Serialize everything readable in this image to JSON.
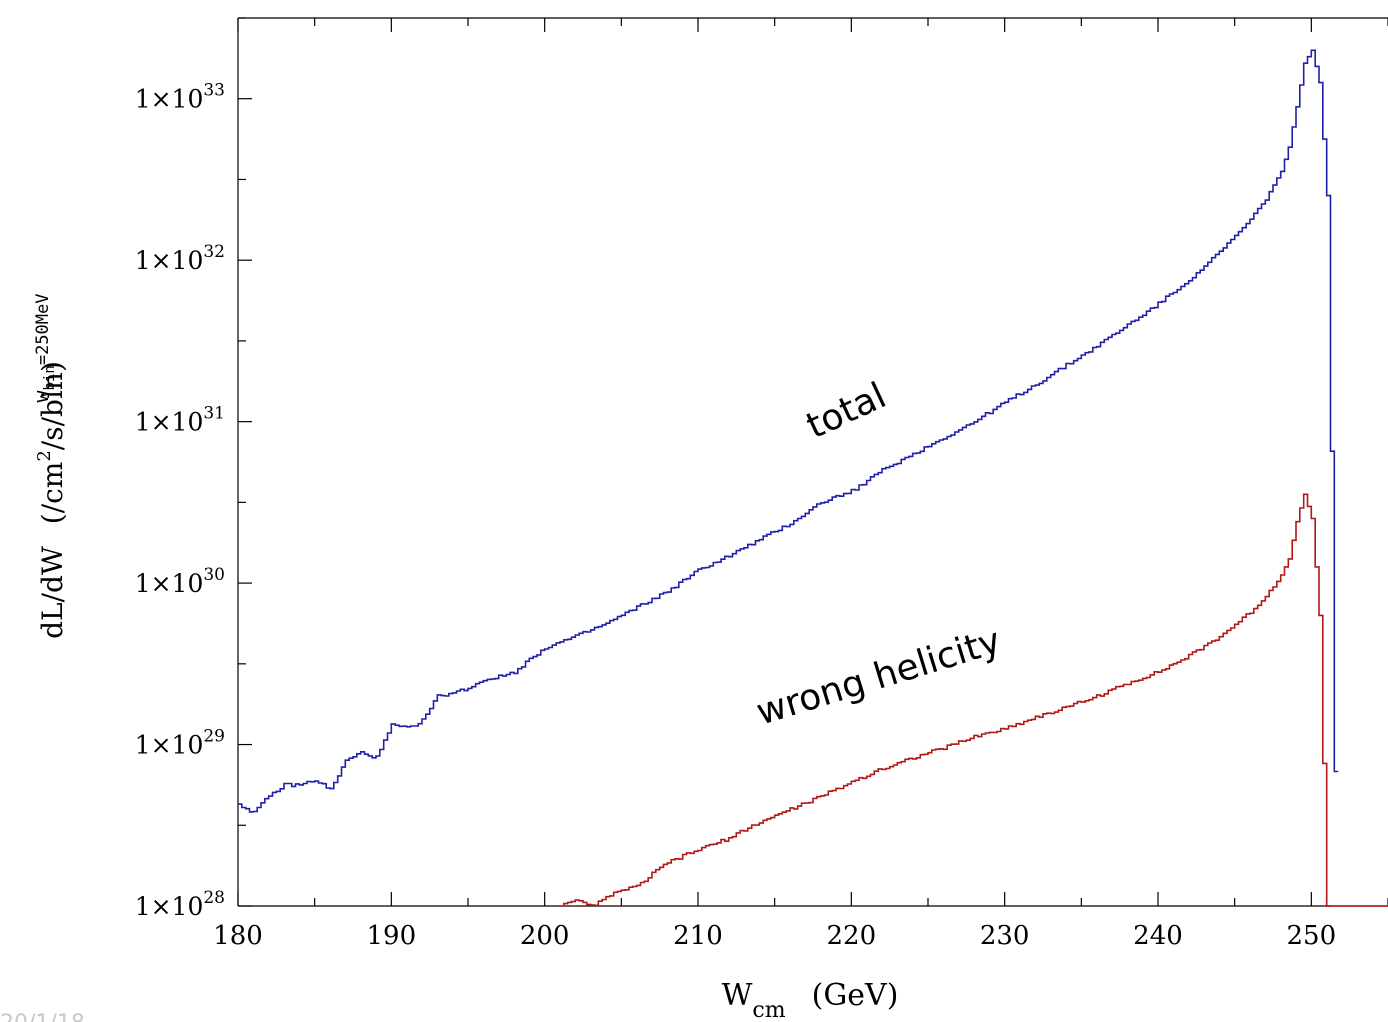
{
  "chart_data": {
    "type": "line",
    "step": true,
    "xlabel": {
      "main": "W",
      "sub": "cm",
      "unit": "(GeV)"
    },
    "ylabel": {
      "main": "dL/dW",
      "unit_pre": "(/cm",
      "unit_sup": "2",
      "unit_post": "/s/bin)"
    },
    "bin_label": {
      "main": "w",
      "sub": "bin",
      "rest": "=250MeV"
    },
    "xlim": [
      180,
      255
    ],
    "ylim_log10": [
      28,
      33.5
    ],
    "y_scale": "log",
    "x_ticks": [
      180,
      190,
      200,
      210,
      220,
      230,
      240,
      250
    ],
    "x_tick_labels": [
      "180",
      "190",
      "200",
      "210",
      "220",
      "230",
      "240",
      "250"
    ],
    "y_ticks": [
      {
        "base": "1×10",
        "exp": "28"
      },
      {
        "base": "1×10",
        "exp": "29"
      },
      {
        "base": "1×10",
        "exp": "30"
      },
      {
        "base": "1×10",
        "exp": "31"
      },
      {
        "base": "1×10",
        "exp": "32"
      },
      {
        "base": "1×10",
        "exp": "33"
      }
    ],
    "grid": false,
    "series": [
      {
        "name": "total",
        "color": "#1f1fa8",
        "x": [
          180,
          181,
          182,
          183,
          184,
          185,
          186,
          187,
          188,
          189,
          190,
          191,
          192,
          193,
          194,
          195,
          196,
          197,
          198,
          199,
          200,
          202,
          204,
          206,
          208,
          210,
          212,
          214,
          216,
          218,
          220,
          222,
          224,
          226,
          228,
          230,
          232,
          234,
          236,
          238,
          240,
          242,
          244,
          246,
          247,
          248,
          248.5,
          249,
          249.5,
          250,
          250.5,
          251,
          251.3,
          251.6
        ],
        "log10_y": [
          28.63,
          28.58,
          28.68,
          28.75,
          28.75,
          28.78,
          28.72,
          28.9,
          28.95,
          28.92,
          29.12,
          29.1,
          29.15,
          29.3,
          29.32,
          29.35,
          29.4,
          29.42,
          29.45,
          29.53,
          29.6,
          29.67,
          29.75,
          29.85,
          29.95,
          30.08,
          30.17,
          30.27,
          30.37,
          30.5,
          30.57,
          30.7,
          30.8,
          30.9,
          31.0,
          31.12,
          31.23,
          31.35,
          31.47,
          31.6,
          31.73,
          31.88,
          32.05,
          32.25,
          32.38,
          32.55,
          32.7,
          32.95,
          33.22,
          33.3,
          33.1,
          32.4,
          30.5,
          28.0
        ]
      },
      {
        "name": "wrong helicity",
        "color": "#b01818",
        "x": [
          201,
          202,
          203,
          204,
          205,
          206,
          207,
          208,
          210,
          212,
          214,
          216,
          218,
          220,
          222,
          224,
          226,
          228,
          230,
          232,
          234,
          236,
          238,
          240,
          242,
          244,
          246,
          247,
          248,
          248.5,
          249,
          249.5,
          250,
          250.5,
          250.8,
          251
        ],
        "log10_y": [
          28.0,
          28.03,
          28.0,
          28.05,
          28.1,
          28.12,
          28.2,
          28.27,
          28.35,
          28.42,
          28.52,
          28.6,
          28.68,
          28.77,
          28.85,
          28.92,
          28.98,
          29.05,
          29.1,
          29.17,
          29.23,
          29.3,
          29.38,
          29.45,
          29.55,
          29.67,
          29.82,
          29.92,
          30.05,
          30.15,
          30.38,
          30.55,
          30.4,
          29.8,
          28.7,
          28.0
        ]
      }
    ],
    "annotations": [
      {
        "text": "total",
        "at_x": 220,
        "at_log10_y": 31.0,
        "rotate_deg": -25
      },
      {
        "text": "wrong helicity",
        "at_x": 222,
        "at_log10_y": 29.35,
        "rotate_deg": -17
      }
    ]
  },
  "footer": {
    "text": "20/1/18"
  }
}
